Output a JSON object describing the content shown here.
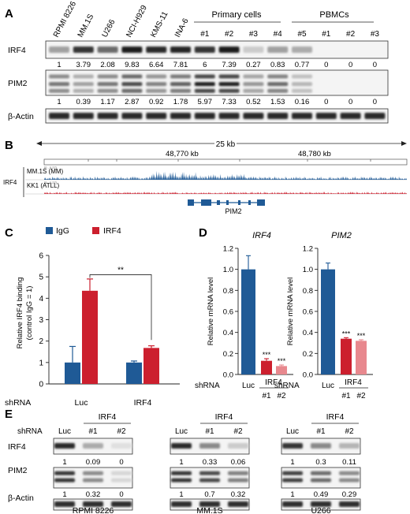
{
  "panelA": {
    "letter": "A",
    "lanes": [
      "RPMI 8226",
      "MM.1S",
      "U266",
      "NCI-H929",
      "KMS-11",
      "INA-6",
      "#1",
      "#2",
      "#3",
      "#4",
      "#5",
      "#1",
      "#2",
      "#3"
    ],
    "group_primary": "Primary cells",
    "group_pbmc": "PBMCs",
    "blots": [
      {
        "label": "IRF4",
        "quant": [
          "1",
          "3.79",
          "2.08",
          "9.83",
          "6.64",
          "7.81",
          "6",
          "7.39",
          "0.27",
          "0.83",
          "0.77",
          "0",
          "0",
          "0"
        ],
        "intensity": [
          0.35,
          0.85,
          0.6,
          0.95,
          0.9,
          0.92,
          0.85,
          0.95,
          0.15,
          0.35,
          0.3,
          0,
          0,
          0
        ]
      },
      {
        "label": "PIM2",
        "quant": [
          "1",
          "0.39",
          "1.17",
          "2.87",
          "0.92",
          "1.78",
          "5.97",
          "7.33",
          "0.52",
          "1.53",
          "0.16",
          "0",
          "0",
          "0"
        ],
        "intensity": [
          0.55,
          0.35,
          0.55,
          0.75,
          0.5,
          0.65,
          0.95,
          0.95,
          0.4,
          0.6,
          0.25,
          0,
          0,
          0
        ]
      },
      {
        "label": "β-Actin",
        "quant": [],
        "intensity": [
          0.9,
          0.9,
          0.9,
          0.9,
          0.9,
          0.9,
          0.9,
          0.9,
          0.9,
          0.9,
          0.9,
          0.9,
          0.9,
          0.9
        ]
      }
    ]
  },
  "panelB": {
    "letter": "B",
    "span_label": "25 kb",
    "coord_left": "48,770 kb",
    "coord_right": "48,780 kb",
    "gene_group": "IRF4",
    "tracks": [
      {
        "name": "MM.1S (MM)",
        "scale": "[0 - 0.27]",
        "color": "#1f5a96"
      },
      {
        "name": "KK1 (ATLL)",
        "scale": "[0 - 0.27]",
        "color": "#cc1f2e"
      }
    ],
    "gene": "PIM2"
  },
  "panelC": {
    "letter": "C",
    "legend": [
      "IgG",
      "IRF4"
    ],
    "colors": [
      "#1f5a96",
      "#cc1f2e"
    ],
    "ylabel_line1": "Relative IRF4 binding",
    "ylabel_line2": "(control IgG = 1)",
    "xprefix": "shRNA",
    "significance": "**",
    "chart_data": {
      "type": "bar",
      "categories": [
        "Luc",
        "IRF4"
      ],
      "series": [
        {
          "name": "IgG",
          "values": [
            1.0,
            1.0
          ],
          "errors": [
            0.75,
            0.07
          ]
        },
        {
          "name": "IRF4",
          "values": [
            4.35,
            1.68
          ],
          "errors": [
            0.55,
            0.1
          ]
        }
      ],
      "ylim": [
        0,
        6
      ],
      "yticks": [
        "0",
        "1",
        "2",
        "3",
        "4",
        "5",
        "6"
      ]
    }
  },
  "panelD": {
    "letter": "D",
    "ylabel": "Relative mRNA level",
    "xprefix": "shRNA",
    "knockdown_label": "IRF4",
    "significance": "***",
    "colors": [
      "#1f5a96",
      "#cc1f2e",
      "#e8888e"
    ],
    "charts": [
      {
        "title": "IRF4",
        "type": "bar",
        "categories": [
          "Luc",
          "#1",
          "#2"
        ],
        "values": [
          1.0,
          0.13,
          0.08
        ],
        "errors": [
          0.13,
          0.02,
          0.01
        ],
        "ylim": [
          0,
          1.2
        ],
        "yticks": [
          "0.0",
          "0.2",
          "0.4",
          "0.6",
          "0.8",
          "1.0",
          "1.2"
        ]
      },
      {
        "title": "PIM2",
        "type": "bar",
        "categories": [
          "Luc",
          "#1",
          "#2"
        ],
        "values": [
          1.0,
          0.34,
          0.32
        ],
        "errors": [
          0.06,
          0.01,
          0.01
        ],
        "ylim": [
          0,
          1.2
        ],
        "yticks": [
          "0.0",
          "0.2",
          "0.4",
          "0.6",
          "0.8",
          "1.0",
          "1.2"
        ]
      }
    ]
  },
  "panelE": {
    "letter": "E",
    "shrna_label": "shRNA",
    "header_knock": "IRF4",
    "lanes": [
      "Luc",
      "#1",
      "#2"
    ],
    "row_labels": [
      "IRF4",
      "PIM2",
      "β-Actin"
    ],
    "groups": [
      {
        "cell": "RPMI 8226",
        "irf4_quant": [
          "1",
          "0.09",
          "0"
        ],
        "pim2_quant": [
          "1",
          "0.32",
          "0"
        ],
        "irf4_int": [
          0.9,
          0.3,
          0.05
        ],
        "pim2_int": [
          0.85,
          0.45,
          0.1
        ]
      },
      {
        "cell": "MM.1S",
        "irf4_quant": [
          "1",
          "0.33",
          "0.06"
        ],
        "pim2_quant": [
          "1",
          "0.7",
          "0.32"
        ],
        "irf4_int": [
          0.9,
          0.45,
          0.15
        ],
        "pim2_int": [
          0.85,
          0.75,
          0.5
        ]
      },
      {
        "cell": "U266",
        "irf4_quant": [
          "1",
          "0.3",
          "0.11"
        ],
        "pim2_quant": [
          "1",
          "0.49",
          "0.29"
        ],
        "irf4_int": [
          0.85,
          0.45,
          0.25
        ],
        "pim2_int": [
          0.8,
          0.6,
          0.45
        ]
      }
    ]
  }
}
